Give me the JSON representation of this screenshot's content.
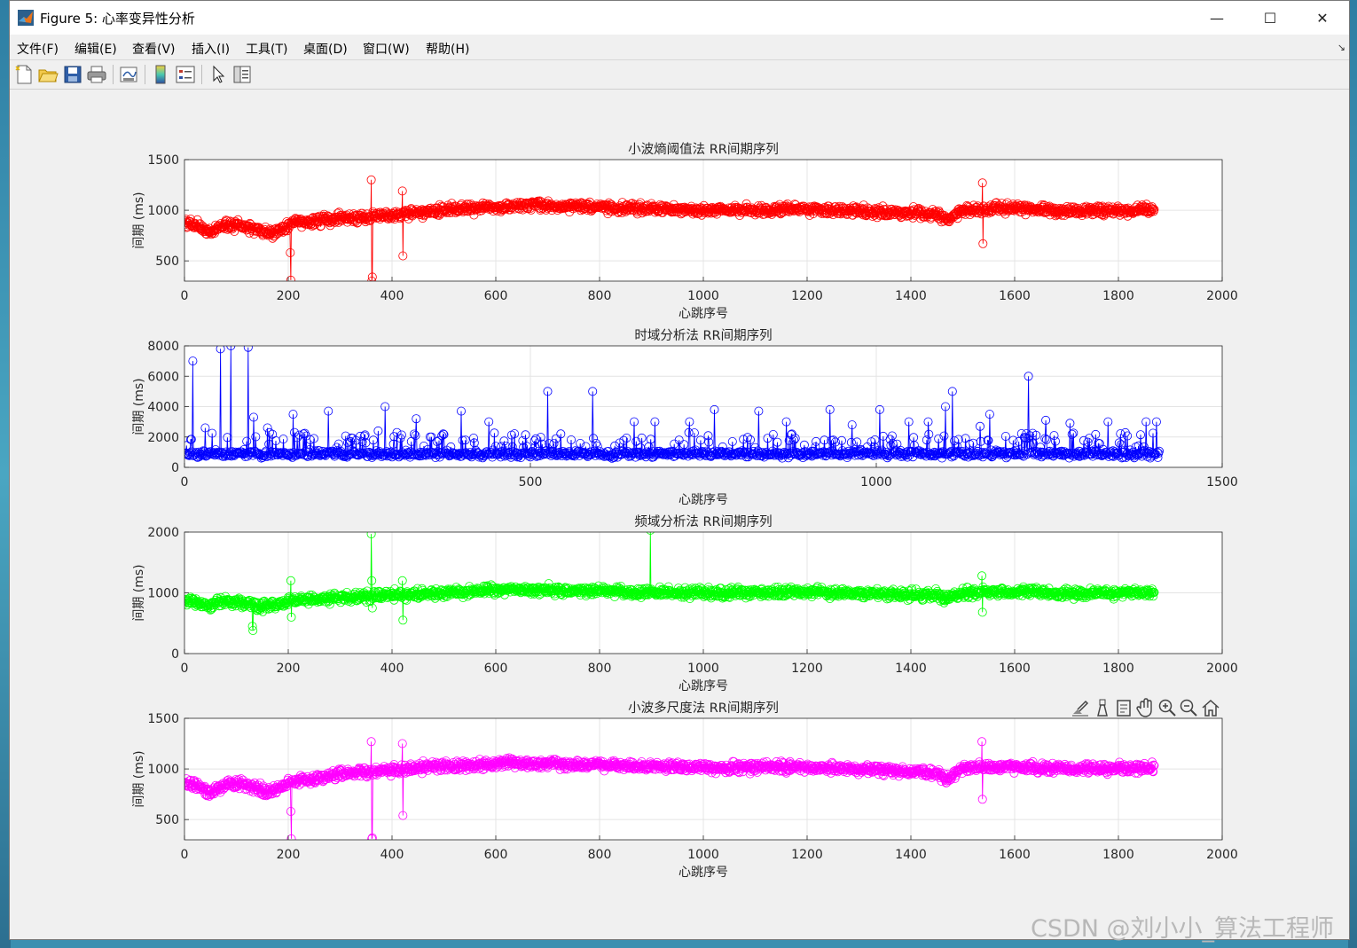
{
  "window": {
    "title": "Figure 5: 心率变异性分析",
    "controls": {
      "minimize": "—",
      "maximize": "☐",
      "close": "✕"
    }
  },
  "menubar": {
    "items": [
      "文件(F)",
      "编辑(E)",
      "查看(V)",
      "插入(I)",
      "工具(T)",
      "桌面(D)",
      "窗口(W)",
      "帮助(H)"
    ],
    "dock_arrow": "↘"
  },
  "toolbar": {
    "buttons": [
      "new-figure-icon",
      "open-file-icon",
      "save-icon",
      "print-icon",
      "link-plot-icon",
      "colorbar-icon",
      "legend-icon",
      "pointer-icon",
      "property-inspector-icon"
    ]
  },
  "axes_toolbar": {
    "buttons": [
      "brush-icon",
      "data-tip-icon",
      "save-axes-icon",
      "pan-icon",
      "zoom-in-icon",
      "zoom-out-icon",
      "home-icon"
    ]
  },
  "watermark": "CSDN @刘小小_算法工程师",
  "chart_data": [
    {
      "type": "line",
      "title": "小波熵阈值法 RR间期序列",
      "xlabel": "心跳序号",
      "ylabel": "间期 (ms)",
      "color": "#ff0000",
      "marker": "circle",
      "xlim": [
        0,
        2000
      ],
      "ylim": [
        300,
        1500
      ],
      "xticks": [
        0,
        200,
        400,
        600,
        800,
        1000,
        1200,
        1400,
        1600,
        1800,
        2000
      ],
      "yticks": [
        500,
        1000,
        1500
      ],
      "grid": true,
      "n_points": 1870,
      "trend": [
        [
          0,
          880
        ],
        [
          20,
          860
        ],
        [
          50,
          790
        ],
        [
          80,
          860
        ],
        [
          140,
          810
        ],
        [
          170,
          770
        ],
        [
          210,
          870
        ],
        [
          300,
          920
        ],
        [
          400,
          950
        ],
        [
          500,
          1000
        ],
        [
          650,
          1050
        ],
        [
          800,
          1030
        ],
        [
          1000,
          1000
        ],
        [
          1200,
          1010
        ],
        [
          1350,
          980
        ],
        [
          1450,
          960
        ],
        [
          1470,
          900
        ],
        [
          1500,
          1000
        ],
        [
          1600,
          1020
        ],
        [
          1700,
          990
        ],
        [
          1870,
          1010
        ]
      ],
      "outliers": [
        [
          204,
          580
        ],
        [
          205,
          310
        ],
        [
          360,
          1300
        ],
        [
          361,
          300
        ],
        [
          362,
          340
        ],
        [
          420,
          1190
        ],
        [
          421,
          550
        ],
        [
          1538,
          1270
        ],
        [
          1539,
          670
        ]
      ]
    },
    {
      "type": "line",
      "title": "时域分析法 RR间期序列",
      "xlabel": "心跳序号",
      "ylabel": "间期 (ms)",
      "color": "#0000ff",
      "marker": "circle",
      "xlim": [
        0,
        1500
      ],
      "ylim": [
        0,
        8000
      ],
      "xticks": [
        0,
        500,
        1000,
        1500
      ],
      "yticks": [
        0,
        2000,
        4000,
        6000,
        8000
      ],
      "grid": true,
      "n_points": 1410,
      "trend": [
        [
          0,
          900
        ],
        [
          1410,
          900
        ]
      ],
      "outliers": [
        [
          12,
          7000
        ],
        [
          52,
          7800
        ],
        [
          67,
          8000
        ],
        [
          92,
          7900
        ],
        [
          30,
          2600
        ],
        [
          100,
          3300
        ],
        [
          120,
          2600
        ],
        [
          157,
          3500
        ],
        [
          208,
          3700
        ],
        [
          280,
          2400
        ],
        [
          290,
          4000
        ],
        [
          335,
          3200
        ],
        [
          400,
          3700
        ],
        [
          440,
          3000
        ],
        [
          525,
          3500
        ],
        [
          525,
          5000
        ],
        [
          590,
          5000
        ],
        [
          650,
          3000
        ],
        [
          680,
          3000
        ],
        [
          730,
          3000
        ],
        [
          766,
          3800
        ],
        [
          830,
          3700
        ],
        [
          870,
          3000
        ],
        [
          933,
          3800
        ],
        [
          965,
          2800
        ],
        [
          1005,
          3800
        ],
        [
          1047,
          3000
        ],
        [
          1075,
          3000
        ],
        [
          1100,
          4000
        ],
        [
          1110,
          5000
        ],
        [
          1150,
          2700
        ],
        [
          1164,
          3500
        ],
        [
          1220,
          6000
        ],
        [
          1245,
          3100
        ],
        [
          1280,
          2900
        ],
        [
          1335,
          3000
        ],
        [
          1390,
          3000
        ],
        [
          1405,
          3000
        ]
      ]
    },
    {
      "type": "line",
      "title": "频域分析法 RR间期序列",
      "xlabel": "心跳序号",
      "ylabel": "间期 (ms)",
      "color": "#00ff00",
      "marker": "circle",
      "xlim": [
        0,
        2000
      ],
      "ylim": [
        0,
        2000
      ],
      "xticks": [
        0,
        200,
        400,
        600,
        800,
        1000,
        1200,
        1400,
        1600,
        1800,
        2000
      ],
      "yticks": [
        0,
        1000,
        2000
      ],
      "grid": true,
      "n_points": 1870,
      "trend": [
        [
          0,
          880
        ],
        [
          20,
          860
        ],
        [
          50,
          790
        ],
        [
          80,
          860
        ],
        [
          130,
          820
        ],
        [
          140,
          770
        ],
        [
          210,
          870
        ],
        [
          300,
          920
        ],
        [
          400,
          960
        ],
        [
          500,
          1010
        ],
        [
          650,
          1050
        ],
        [
          800,
          1030
        ],
        [
          1000,
          1000
        ],
        [
          1200,
          1010
        ],
        [
          1350,
          980
        ],
        [
          1450,
          960
        ],
        [
          1470,
          900
        ],
        [
          1500,
          1000
        ],
        [
          1600,
          1020
        ],
        [
          1700,
          990
        ],
        [
          1870,
          1010
        ]
      ],
      "outliers": [
        [
          131,
          450
        ],
        [
          132,
          380
        ],
        [
          205,
          1200
        ],
        [
          206,
          600
        ],
        [
          360,
          1970
        ],
        [
          361,
          1200
        ],
        [
          362,
          750
        ],
        [
          420,
          1200
        ],
        [
          421,
          550
        ],
        [
          898,
          2030
        ],
        [
          1537,
          1280
        ],
        [
          1538,
          680
        ]
      ]
    },
    {
      "type": "line",
      "title": "小波多尺度法 RR间期序列",
      "xlabel": "心跳序号",
      "ylabel": "间期 (ms)",
      "color": "#ff00ff",
      "marker": "circle",
      "xlim": [
        0,
        2000
      ],
      "ylim": [
        300,
        1500
      ],
      "xticks": [
        0,
        200,
        400,
        600,
        800,
        1000,
        1200,
        1400,
        1600,
        1800,
        2000
      ],
      "yticks": [
        500,
        1000,
        1500
      ],
      "grid": true,
      "n_points": 1870,
      "trend": [
        [
          0,
          870
        ],
        [
          20,
          850
        ],
        [
          50,
          760
        ],
        [
          80,
          860
        ],
        [
          140,
          820
        ],
        [
          160,
          760
        ],
        [
          210,
          880
        ],
        [
          300,
          950
        ],
        [
          400,
          990
        ],
        [
          500,
          1030
        ],
        [
          650,
          1060
        ],
        [
          800,
          1040
        ],
        [
          1000,
          1010
        ],
        [
          1200,
          1020
        ],
        [
          1350,
          990
        ],
        [
          1450,
          960
        ],
        [
          1470,
          900
        ],
        [
          1500,
          1010
        ],
        [
          1600,
          1020
        ],
        [
          1700,
          1000
        ],
        [
          1870,
          1010
        ]
      ],
      "outliers": [
        [
          205,
          580
        ],
        [
          206,
          310
        ],
        [
          360,
          1270
        ],
        [
          361,
          310
        ],
        [
          362,
          320
        ],
        [
          420,
          1250
        ],
        [
          421,
          540
        ],
        [
          1537,
          1270
        ],
        [
          1538,
          700
        ]
      ]
    }
  ]
}
